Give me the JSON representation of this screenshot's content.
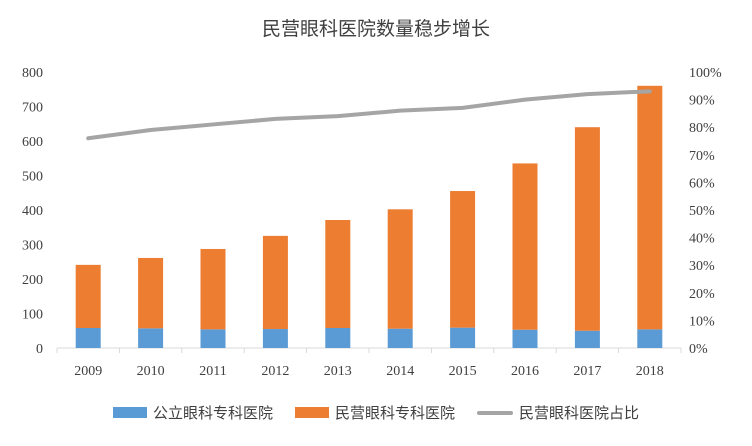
{
  "chart_data": {
    "type": "bar",
    "title": "民营眼科医院数量稳步增长",
    "categories": [
      "2009",
      "2010",
      "2011",
      "2012",
      "2013",
      "2014",
      "2015",
      "2016",
      "2017",
      "2018"
    ],
    "series": [
      {
        "name": "公立眼科专科医院",
        "type": "stacked-bar",
        "axis": "left",
        "color": "#5b9bd5",
        "values": [
          58,
          57,
          54,
          55,
          58,
          56,
          59,
          53,
          50,
          54
        ]
      },
      {
        "name": "民营眼科专科医院",
        "type": "stacked-bar",
        "axis": "left",
        "color": "#ed7d31",
        "values": [
          183,
          204,
          233,
          270,
          313,
          346,
          396,
          482,
          590,
          706
        ]
      },
      {
        "name": "民营眼科医院占比",
        "type": "line",
        "axis": "right",
        "color": "#a5a5a5",
        "values": [
          0.76,
          0.79,
          0.81,
          0.83,
          0.84,
          0.86,
          0.87,
          0.9,
          0.92,
          0.93
        ]
      }
    ],
    "left_axis": {
      "min": 0,
      "max": 800,
      "step": 100,
      "tick_labels": [
        "0",
        "100",
        "200",
        "300",
        "400",
        "500",
        "600",
        "700",
        "800"
      ]
    },
    "right_axis": {
      "min": 0,
      "max": 1,
      "step": 0.1,
      "tick_labels": [
        "0%",
        "10%",
        "20%",
        "30%",
        "40%",
        "50%",
        "60%",
        "70%",
        "80%",
        "90%",
        "100%"
      ]
    },
    "legend": {
      "position": "bottom",
      "labels": [
        "公立眼科专科医院",
        "民营眼科专科医院",
        "民营眼科医院占比"
      ]
    },
    "grid": false
  }
}
